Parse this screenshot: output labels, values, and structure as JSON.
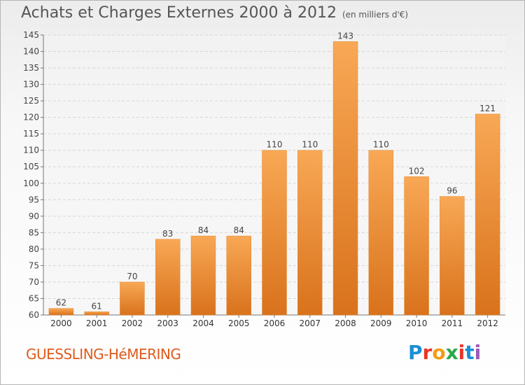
{
  "header": {
    "title": "Achats et Charges Externes 2000 à 2012",
    "unit": "(en milliers d'€)"
  },
  "footer": {
    "location": "GUESSLING-HéMERING",
    "brand": "Proxiti"
  },
  "colors": {
    "bar_top": "#f8a855",
    "bar_bottom": "#d9721c",
    "location_text": "#e05a1c",
    "brand_letters": [
      "#1a8fd6",
      "#e8352a",
      "#f39c12",
      "#2aa84a",
      "#e8352a",
      "#1a8fd6",
      "#9b59b6"
    ]
  },
  "chart_data": {
    "type": "bar",
    "title": "Achats et Charges Externes 2000 à 2012",
    "subtitle": "(en milliers d'€)",
    "xlabel": "",
    "ylabel": "",
    "categories": [
      "2000",
      "2001",
      "2002",
      "2003",
      "2004",
      "2005",
      "2006",
      "2007",
      "2008",
      "2009",
      "2010",
      "2011",
      "2012"
    ],
    "values": [
      62,
      61,
      70,
      83,
      84,
      84,
      110,
      110,
      143,
      110,
      102,
      96,
      121
    ],
    "ylim": [
      60,
      145
    ],
    "yticks": [
      60,
      65,
      70,
      75,
      80,
      85,
      90,
      95,
      100,
      105,
      110,
      115,
      120,
      125,
      130,
      135,
      140,
      145
    ],
    "grid": true,
    "data_labels": true
  }
}
